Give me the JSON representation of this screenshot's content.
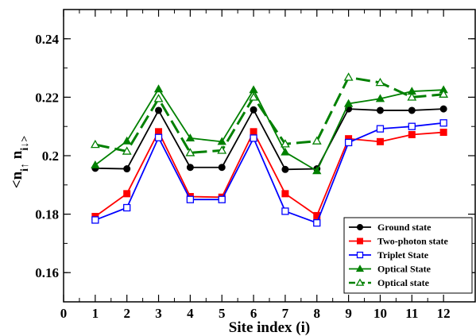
{
  "chart_data": {
    "type": "line",
    "xlabel": "Site index (i)",
    "ylabel": "<n i↑ n i↓>",
    "xlim": [
      0,
      13
    ],
    "ylim": [
      0.15,
      0.25
    ],
    "xticks": [
      0,
      1,
      2,
      3,
      4,
      5,
      6,
      7,
      8,
      9,
      10,
      11,
      12
    ],
    "yticks": [
      0.16,
      0.18,
      0.2,
      0.22,
      0.24
    ],
    "ytick_labels": [
      "0.16",
      "0.18",
      "0.2",
      "0.22",
      "0.24"
    ],
    "legend_position": "bottom-right",
    "grid": false,
    "x": [
      1,
      2,
      3,
      4,
      5,
      6,
      7,
      8,
      9,
      10,
      11,
      12
    ],
    "series": [
      {
        "name": "Ground state",
        "color": "#000000",
        "marker": "filled-circle",
        "dashed": false,
        "values": [
          0.1957,
          0.1955,
          0.2155,
          0.196,
          0.196,
          0.2157,
          0.1953,
          0.1955,
          0.216,
          0.2155,
          0.2155,
          0.216
        ]
      },
      {
        "name": "Two-photon state",
        "color": "#ff0000",
        "marker": "filled-square",
        "dashed": false,
        "values": [
          0.1792,
          0.187,
          0.2082,
          0.186,
          0.1858,
          0.2082,
          0.187,
          0.1795,
          0.2058,
          0.2048,
          0.2072,
          0.208
        ]
      },
      {
        "name": "Triplet State",
        "color": "#0000ff",
        "marker": "open-square",
        "dashed": false,
        "values": [
          0.178,
          0.1822,
          0.2062,
          0.185,
          0.185,
          0.206,
          0.181,
          0.177,
          0.2045,
          0.2092,
          0.21,
          0.2112
        ]
      },
      {
        "name": "Optical State",
        "color": "#008000",
        "marker": "filled-triangle",
        "dashed": false,
        "values": [
          0.1968,
          0.205,
          0.2228,
          0.206,
          0.2048,
          0.2225,
          0.2012,
          0.1948,
          0.2178,
          0.2195,
          0.222,
          0.2225
        ]
      },
      {
        "name": "Optical state",
        "color": "#008000",
        "marker": "open-triangle",
        "dashed": true,
        "values": [
          0.2038,
          0.2015,
          0.2195,
          0.201,
          0.2018,
          0.22,
          0.204,
          0.205,
          0.2268,
          0.225,
          0.22,
          0.221
        ]
      }
    ]
  }
}
